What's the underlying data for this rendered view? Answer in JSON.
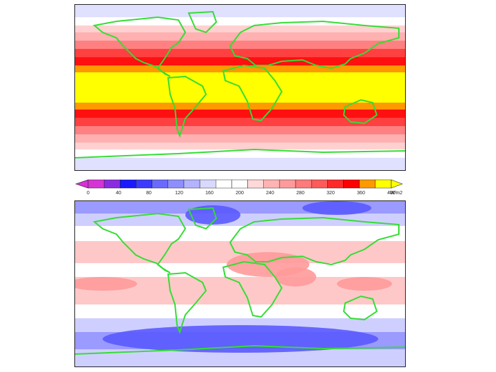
{
  "colorbar": {
    "units": "W/m2",
    "tick_labels": [
      "0",
      "40",
      "80",
      "120",
      "160",
      "200",
      "240",
      "280",
      "320",
      "360",
      "400"
    ],
    "colors": [
      "#d633d6",
      "#8a2be2",
      "#1a1aff",
      "#3b3bff",
      "#6a6aff",
      "#8e8eff",
      "#b3b3ff",
      "#d9d9ff",
      "#ffffff",
      "#ffffff",
      "#ffd9d9",
      "#ffb3b3",
      "#ff9a9a",
      "#ff7a7a",
      "#ff5a5a",
      "#ff2a2a",
      "#ff0000",
      "#ff9900",
      "#ffff00"
    ]
  },
  "top_map": {
    "bands": [
      "#e0e0ff",
      "#ffffff",
      "#ffd0d0",
      "#ffb0b0",
      "#ff8080",
      "#ff4040",
      "#ff1010",
      "#ff9900",
      "#ffff00"
    ]
  },
  "bottom_map": {
    "colors": {
      "cold": "#5a5aff",
      "cool": "#9a9aff",
      "pale": "#cfcfff",
      "neutral": "#ffffff",
      "warm": "#ffc8c8",
      "hot": "#ff9a9a"
    }
  },
  "coastline_color": "#33dd33"
}
